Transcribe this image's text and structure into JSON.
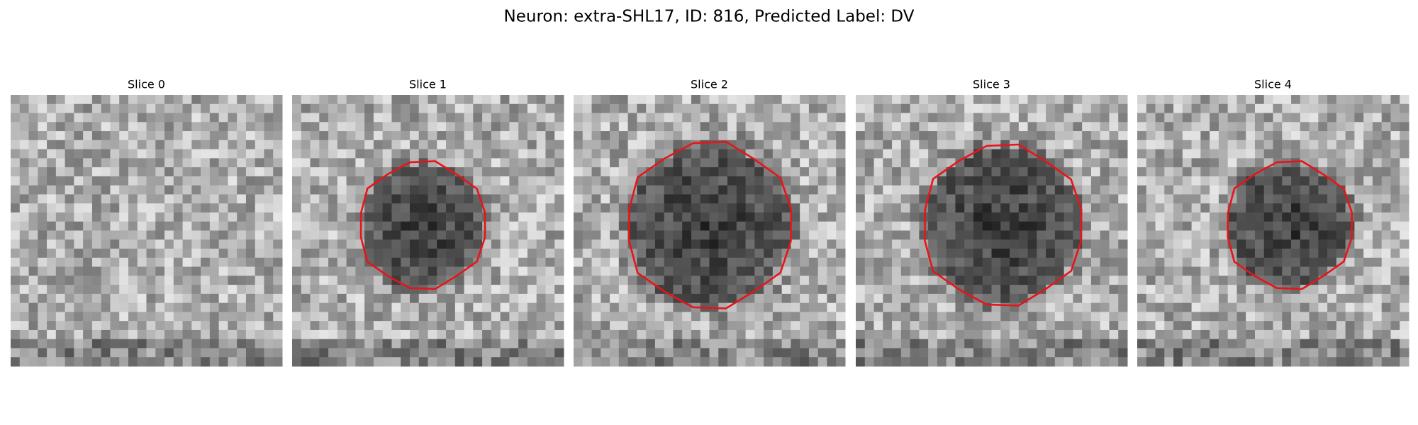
{
  "figure": {
    "title": "Neuron: extra-SHL17, ID: 816, Predicted Label: DV",
    "panels": [
      {
        "title": "Slice 0"
      },
      {
        "title": "Slice 1"
      },
      {
        "title": "Slice 2"
      },
      {
        "title": "Slice 3"
      },
      {
        "title": "Slice 4"
      }
    ]
  }
}
